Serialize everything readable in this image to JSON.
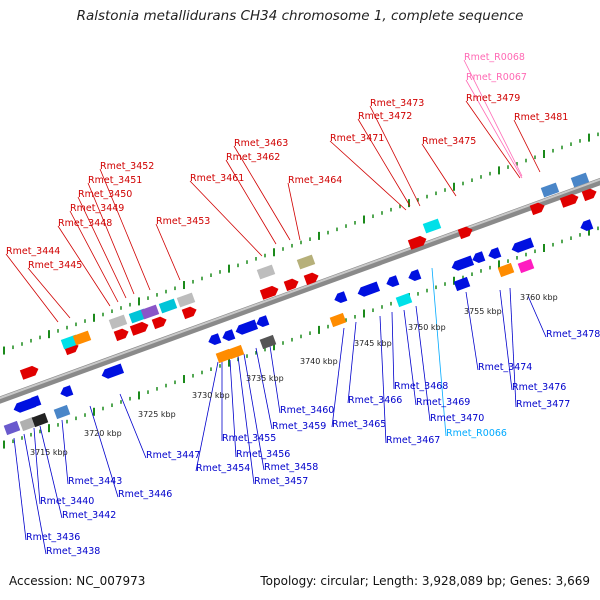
{
  "title": "Ralstonia metallidurans CH34 chromosome 1, complete sequence",
  "footer": {
    "accession": "Accession: NC_007973",
    "summary": "Topology: circular; Length: 3,928,089 bp; Genes: 3,669"
  },
  "colors": {
    "strand_plus_label": "#d00000",
    "strand_minus_label": "#0000cc",
    "rna_pink": "#ff69b4",
    "rna_cyan": "#00aaff",
    "backbone": "#8a8a8a",
    "tick": "#1b8a1b"
  },
  "scale_ticks": [
    "3715 kbp",
    "3720 kbp",
    "3725 kbp",
    "3730 kbp",
    "3735 kbp",
    "3740 kbp",
    "3745 kbp",
    "3750 kbp",
    "3755 kbp",
    "3760 kbp"
  ],
  "top_labels": [
    "Rmet_3444",
    "Rmet_3445",
    "Rmet_3448",
    "Rmet_3449",
    "Rmet_3450",
    "Rmet_3451",
    "Rmet_3452",
    "Rmet_3453",
    "Rmet_3461",
    "Rmet_3462",
    "Rmet_3463",
    "Rmet_3464",
    "Rmet_3471",
    "Rmet_3472",
    "Rmet_3473",
    "Rmet_3475",
    "Rmet_3479",
    "Rmet_3481",
    "Rmet_R0067",
    "Rmet_R0068"
  ],
  "bottom_labels": [
    "Rmet_3436",
    "Rmet_3438",
    "Rmet_3440",
    "Rmet_3442",
    "Rmet_3443",
    "Rmet_3446",
    "Rmet_3447",
    "Rmet_3454",
    "Rmet_3455",
    "Rmet_3456",
    "Rmet_3457",
    "Rmet_3458",
    "Rmet_3459",
    "Rmet_3460",
    "Rmet_3465",
    "Rmet_3466",
    "Rmet_3467",
    "Rmet_3468",
    "Rmet_3469",
    "Rmet_3470",
    "Rmet_R0066",
    "Rmet_3474",
    "Rmet_3476",
    "Rmet_3477",
    "Rmet_3478"
  ]
}
